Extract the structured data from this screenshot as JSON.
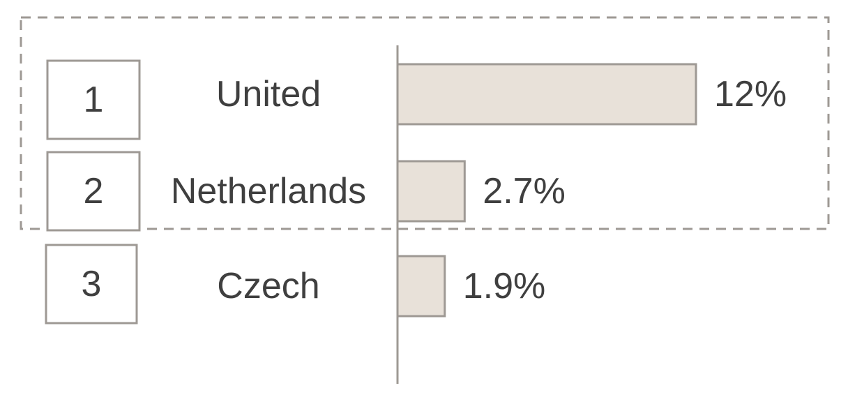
{
  "chart_data": {
    "type": "bar",
    "orientation": "horizontal",
    "ranks": [
      "1",
      "2",
      "3"
    ],
    "categories": [
      "United",
      "Netherlands",
      "Czech"
    ],
    "values": [
      12,
      2.7,
      1.9
    ],
    "value_labels": [
      "12%",
      "2.7%",
      "1.9%"
    ],
    "unit": "%",
    "title": "",
    "xlabel": "",
    "ylabel": "",
    "highlighted_ranks": [
      "1",
      "2"
    ],
    "grid": false,
    "legend": "none"
  },
  "colors": {
    "bar_fill": "#e8e1d9",
    "bar_stroke": "#9e9994",
    "axis": "#9e9994",
    "rank_box_stroke": "#9e9994",
    "highlight_dash": "#9e9994",
    "text": "#3f3f3f"
  }
}
